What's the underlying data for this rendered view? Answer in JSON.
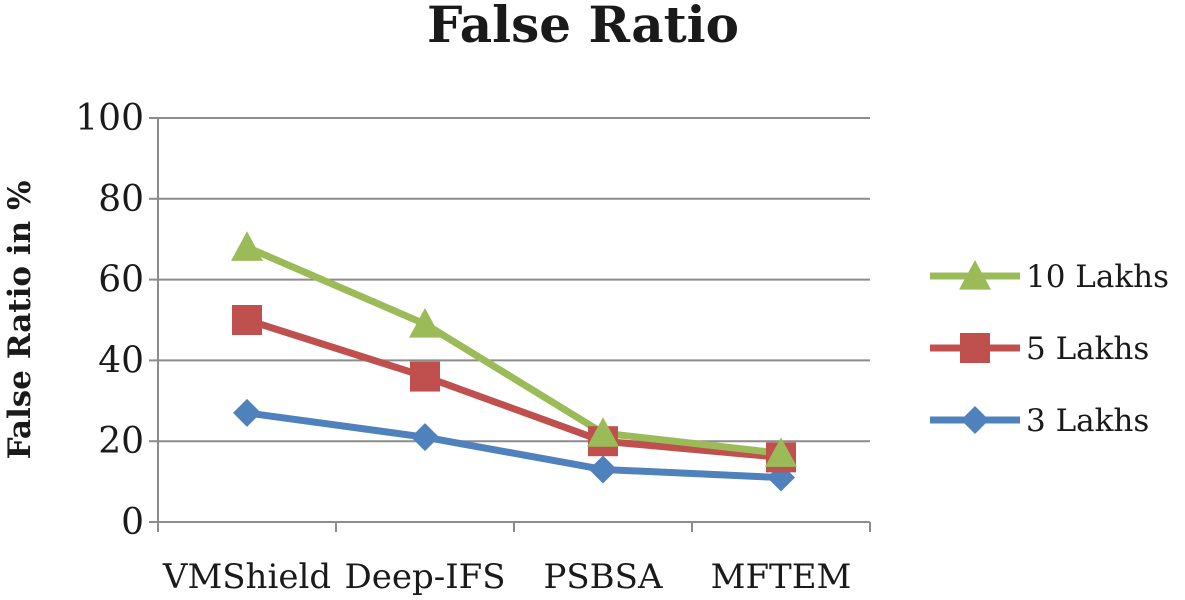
{
  "chart_data": {
    "type": "line",
    "title": "False Ratio",
    "xlabel": "",
    "ylabel": "False Ratio in %",
    "categories": [
      "VMShield",
      "Deep-IFS",
      "PSBSA",
      "MFTEM"
    ],
    "ylim": [
      0,
      100
    ],
    "yticks": [
      "0",
      "20",
      "40",
      "60",
      "80",
      "100"
    ],
    "grid": true,
    "legend_position": "right",
    "series": [
      {
        "name": "10 Lakhs",
        "values": [
          68,
          49,
          22,
          17
        ],
        "color": "#9BBB59",
        "marker": "triangle"
      },
      {
        "name": "5 Lakhs",
        "values": [
          50,
          36,
          20,
          16
        ],
        "color": "#C0504D",
        "marker": "square"
      },
      {
        "name": "3 Lakhs",
        "values": [
          27,
          21,
          13,
          11
        ],
        "color": "#4F81BD",
        "marker": "diamond"
      }
    ]
  }
}
